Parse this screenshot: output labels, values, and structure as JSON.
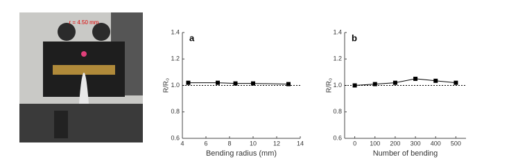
{
  "photo": {
    "label": "r = 4.50 mm"
  },
  "chart_data": [
    {
      "type": "line",
      "panel": "a",
      "ylabel": "R/R₀",
      "xlabel": "Bending radius (mm)",
      "x": [
        4.5,
        7,
        8.5,
        10,
        13
      ],
      "values": [
        1.02,
        1.02,
        1.015,
        1.015,
        1.01
      ],
      "color": "#000000",
      "marker": "square",
      "reference_line": 1,
      "xlim": [
        4,
        14
      ],
      "xticks": [
        4,
        6,
        8,
        10,
        12,
        14
      ],
      "ylim": [
        0.6,
        1.4
      ],
      "yticks": [
        0.6,
        0.8,
        {
          "value": 1,
          "label": "1.0"
        },
        1.2,
        1.4
      ]
    },
    {
      "type": "line",
      "panel": "b",
      "ylabel": "R/R₀",
      "xlabel": "Number of bending",
      "x": [
        0,
        100,
        200,
        300,
        400,
        500
      ],
      "values": [
        1.0,
        1.01,
        1.02,
        1.05,
        1.035,
        1.02
      ],
      "color": "#000000",
      "marker": "square",
      "reference_line": 1,
      "xlim": [
        -50,
        550
      ],
      "xticks": [
        0,
        100,
        200,
        300,
        400,
        500
      ],
      "ylim": [
        0.6,
        1.4
      ],
      "yticks": [
        0.6,
        0.8,
        {
          "value": 1,
          "label": "1.0"
        },
        1.2,
        1.4
      ]
    }
  ]
}
